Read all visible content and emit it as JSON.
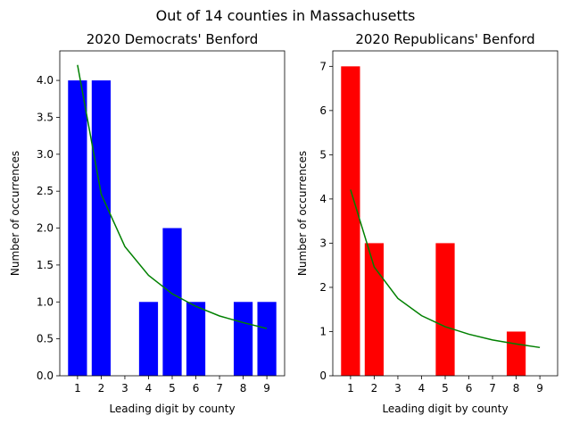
{
  "figure": {
    "suptitle": "Out of 14 counties in Massachusetts"
  },
  "chart_data": [
    {
      "type": "bar",
      "title": "2020 Democrats' Benford",
      "xlabel": "Leading digit by county",
      "ylabel": "Number of occurrences",
      "categories": [
        1,
        2,
        3,
        4,
        5,
        6,
        7,
        8,
        9
      ],
      "values": [
        4,
        4,
        0,
        1,
        2,
        1,
        0,
        1,
        1
      ],
      "bar_color": "#0000ff",
      "ylim": [
        0,
        4.4
      ],
      "yticks": [
        "0.0",
        "0.5",
        "1.0",
        "1.5",
        "2.0",
        "2.5",
        "3.0",
        "3.5",
        "4.0"
      ],
      "ytick_values": [
        0,
        0.5,
        1,
        1.5,
        2,
        2.5,
        3,
        3.5,
        4
      ],
      "expected_line": {
        "color": "#008000",
        "x": [
          1,
          2,
          3,
          4,
          5,
          6,
          7,
          8,
          9
        ],
        "y": [
          4.21,
          2.46,
          1.75,
          1.36,
          1.11,
          0.94,
          0.81,
          0.72,
          0.64
        ]
      }
    },
    {
      "type": "bar",
      "title": "2020 Republicans' Benford",
      "xlabel": "Leading digit by county",
      "ylabel": "Number of occurrences",
      "categories": [
        1,
        2,
        3,
        4,
        5,
        6,
        7,
        8,
        9
      ],
      "values": [
        7,
        3,
        0,
        0,
        3,
        0,
        0,
        1,
        0
      ],
      "bar_color": "#ff0000",
      "ylim": [
        0,
        7.35
      ],
      "yticks": [
        "0",
        "1",
        "2",
        "3",
        "4",
        "5",
        "6",
        "7"
      ],
      "ytick_values": [
        0,
        1,
        2,
        3,
        4,
        5,
        6,
        7
      ],
      "expected_line": {
        "color": "#008000",
        "x": [
          1,
          2,
          3,
          4,
          5,
          6,
          7,
          8,
          9
        ],
        "y": [
          4.21,
          2.46,
          1.75,
          1.36,
          1.11,
          0.94,
          0.81,
          0.72,
          0.64
        ]
      }
    }
  ]
}
